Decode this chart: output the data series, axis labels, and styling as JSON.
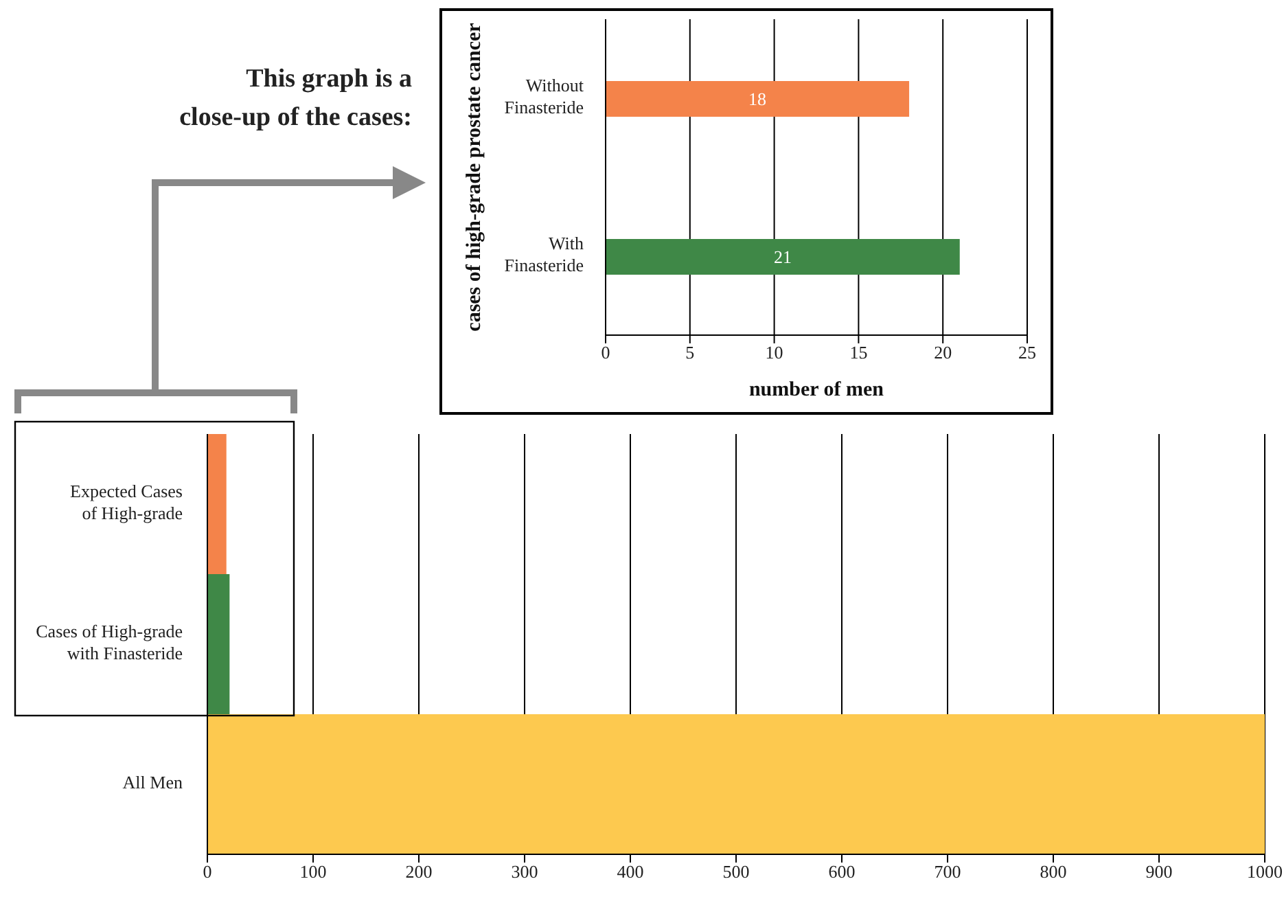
{
  "chart_data": [
    {
      "type": "bar",
      "orientation": "horizontal",
      "categories": [
        "Expected Cases of High-grade",
        "Cases of High-grade with Finasteride",
        "All Men"
      ],
      "values": [
        18,
        21,
        1000
      ],
      "colors": [
        "#f4834a",
        "#3f8847",
        "#fdc94f"
      ],
      "xlim": [
        0,
        1000
      ],
      "xticks": [
        0,
        100,
        200,
        300,
        400,
        500,
        600,
        700,
        800,
        900,
        1000
      ],
      "grid": "x"
    },
    {
      "type": "bar",
      "orientation": "horizontal",
      "categories": [
        "Without Finasteride",
        "With Finasteride"
      ],
      "values": [
        18,
        21
      ],
      "colors": [
        "#f4834a",
        "#3f8847"
      ],
      "xlim": [
        0,
        25
      ],
      "xticks": [
        0,
        5,
        10,
        15,
        20,
        25
      ],
      "grid": "x",
      "xlabel": "number of men",
      "ylabel": "cases of high-grade prostate cancer",
      "data_labels": true,
      "annotations": [
        "This graph is a close-up of the cases:"
      ]
    }
  ]
}
